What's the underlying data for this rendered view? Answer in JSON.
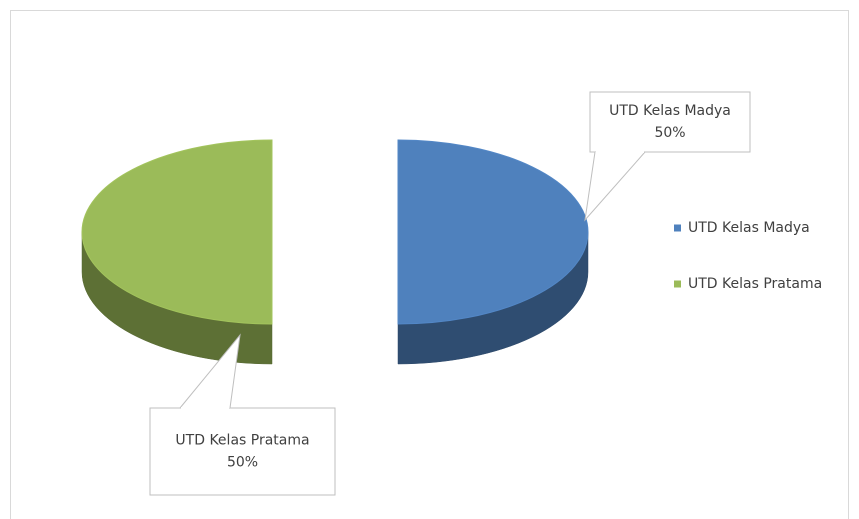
{
  "chart_data": {
    "type": "pie",
    "categories": [
      "UTD Kelas Madya",
      "UTD Kelas Pratama"
    ],
    "values": [
      50,
      50
    ],
    "value_labels": [
      "50%",
      "50%"
    ],
    "colors": [
      "#4f81bd",
      "#9bbb59"
    ],
    "legend": "right"
  }
}
